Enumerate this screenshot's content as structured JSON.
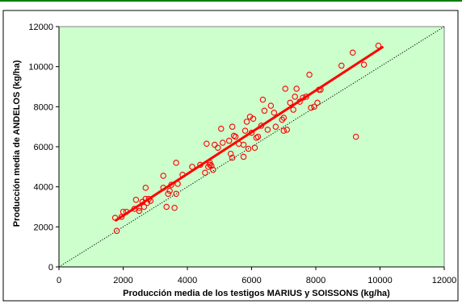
{
  "chart_data": {
    "type": "scatter",
    "title": "",
    "xlabel": "Producción media de los testigos MARIUS y SOISSONS (kg/ha)",
    "ylabel": "Producción media de ANDELOS (kg/ha)",
    "xlim": [
      0,
      12000
    ],
    "ylim": [
      0,
      12000
    ],
    "x_ticks": [
      "0",
      "2000",
      "4000",
      "6000",
      "8000",
      "10000",
      "12000"
    ],
    "y_ticks": [
      "0",
      "2000",
      "4000",
      "6000",
      "8000",
      "10000",
      "12000"
    ],
    "grid": false,
    "legend": "none",
    "colors": {
      "plot_background": "#ccffcc",
      "border_accent": "#008000",
      "points": "#ff0000",
      "regression_line": "#ff0000",
      "reference_line": "#000000"
    },
    "series": [
      {
        "marker": "open-circle",
        "points": [
          [
            1750,
            2450
          ],
          [
            1800,
            1800
          ],
          [
            1950,
            2500
          ],
          [
            2000,
            2750
          ],
          [
            2100,
            2750
          ],
          [
            2350,
            2900
          ],
          [
            2400,
            3350
          ],
          [
            2500,
            2950
          ],
          [
            2500,
            2800
          ],
          [
            2600,
            3250
          ],
          [
            2650,
            3000
          ],
          [
            2700,
            3400
          ],
          [
            2700,
            3950
          ],
          [
            2750,
            3200
          ],
          [
            2800,
            3400
          ],
          [
            2850,
            3300
          ],
          [
            3250,
            4550
          ],
          [
            3250,
            3950
          ],
          [
            3350,
            3000
          ],
          [
            3400,
            3650
          ],
          [
            3450,
            3800
          ],
          [
            3500,
            4100
          ],
          [
            3600,
            2950
          ],
          [
            3650,
            3650
          ],
          [
            3650,
            5200
          ],
          [
            3700,
            4150
          ],
          [
            3850,
            4600
          ],
          [
            4150,
            5000
          ],
          [
            4400,
            5100
          ],
          [
            4550,
            4700
          ],
          [
            4600,
            6150
          ],
          [
            4650,
            5000
          ],
          [
            4700,
            5100
          ],
          [
            4700,
            5200
          ],
          [
            4750,
            5050
          ],
          [
            4800,
            4850
          ],
          [
            4850,
            6100
          ],
          [
            4950,
            5950
          ],
          [
            5050,
            6900
          ],
          [
            5100,
            6200
          ],
          [
            5300,
            6300
          ],
          [
            5350,
            5650
          ],
          [
            5400,
            5450
          ],
          [
            5400,
            7000
          ],
          [
            5450,
            6550
          ],
          [
            5500,
            6500
          ],
          [
            5600,
            6150
          ],
          [
            5750,
            5500
          ],
          [
            5750,
            6100
          ],
          [
            5800,
            6800
          ],
          [
            5850,
            7250
          ],
          [
            5900,
            5900
          ],
          [
            5950,
            7500
          ],
          [
            6000,
            6700
          ],
          [
            6050,
            7400
          ],
          [
            6100,
            5950
          ],
          [
            6150,
            6450
          ],
          [
            6200,
            6500
          ],
          [
            6300,
            7050
          ],
          [
            6350,
            8350
          ],
          [
            6400,
            7800
          ],
          [
            6500,
            6850
          ],
          [
            6600,
            8050
          ],
          [
            6700,
            7700
          ],
          [
            6750,
            7000
          ],
          [
            6950,
            7350
          ],
          [
            7000,
            7450
          ],
          [
            7000,
            6800
          ],
          [
            7050,
            8900
          ],
          [
            7100,
            6850
          ],
          [
            7200,
            8200
          ],
          [
            7300,
            7850
          ],
          [
            7350,
            8500
          ],
          [
            7400,
            8900
          ],
          [
            7500,
            8250
          ],
          [
            7600,
            8450
          ],
          [
            7700,
            8500
          ],
          [
            7800,
            9600
          ],
          [
            7850,
            7950
          ],
          [
            7950,
            8000
          ],
          [
            8050,
            8200
          ],
          [
            8100,
            8850
          ],
          [
            8150,
            8850
          ],
          [
            8800,
            10050
          ],
          [
            9150,
            10700
          ],
          [
            9250,
            6500
          ],
          [
            9500,
            10100
          ],
          [
            9950,
            11050
          ]
        ]
      }
    ],
    "regression_line": {
      "x": [
        1750,
        10100
      ],
      "y": [
        2300,
        11000
      ]
    },
    "reference_line": {
      "x": [
        0,
        12000
      ],
      "y": [
        0,
        12000
      ]
    }
  }
}
